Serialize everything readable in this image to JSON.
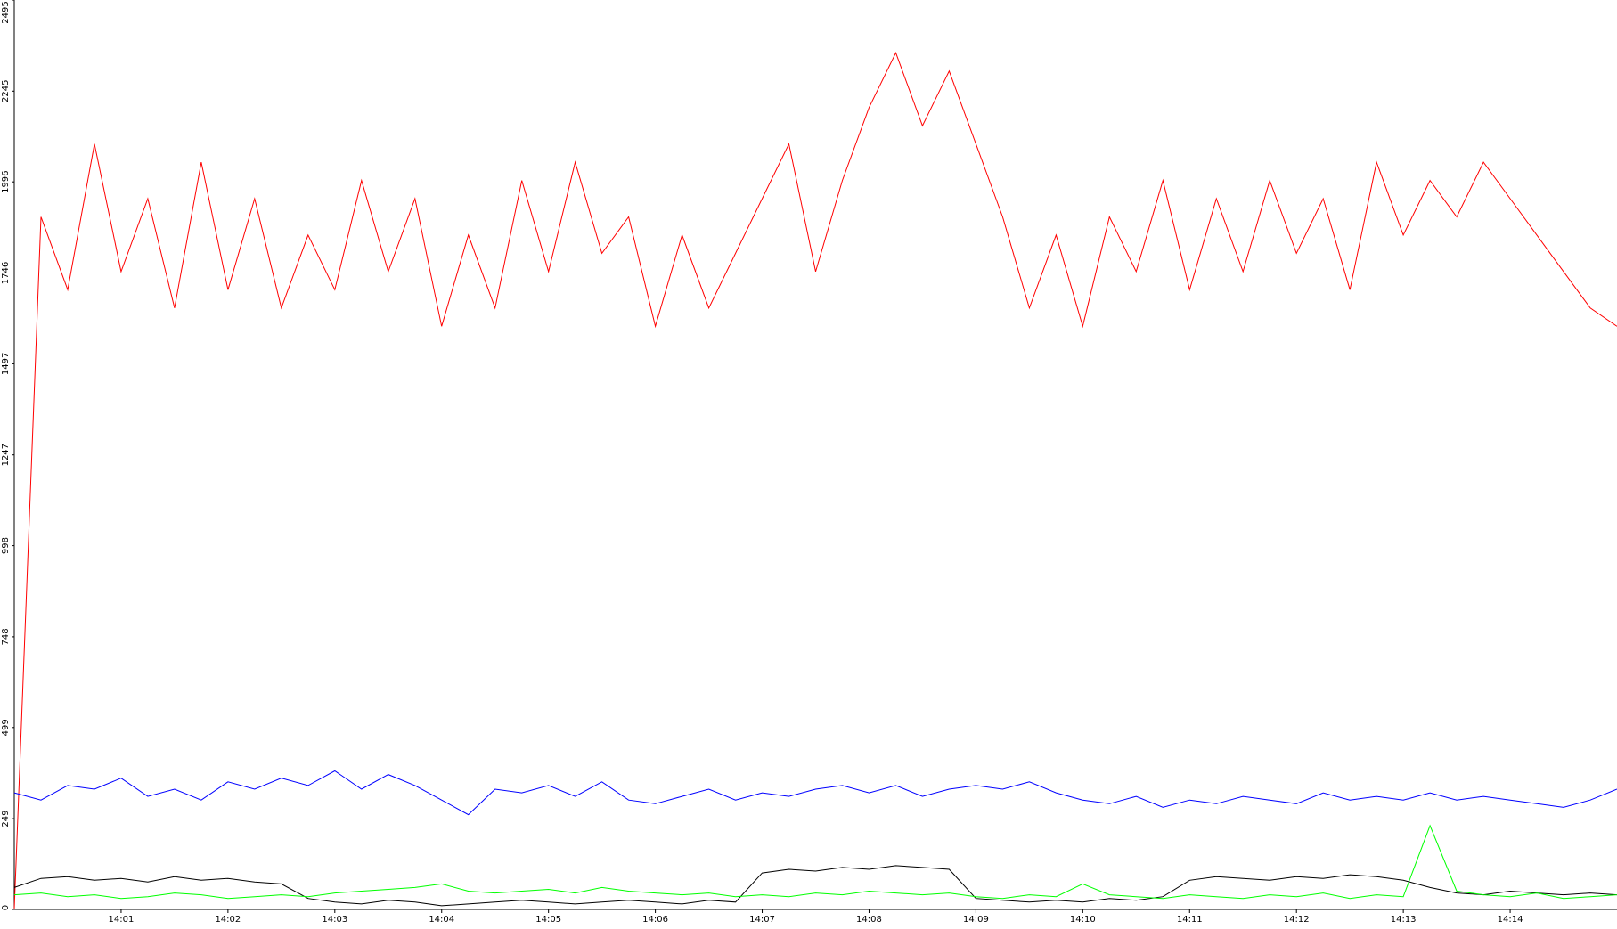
{
  "chart_data": {
    "type": "line",
    "x": [
      0,
      0.25,
      0.5,
      0.75,
      1,
      1.25,
      1.5,
      1.75,
      2,
      2.25,
      2.5,
      2.75,
      3,
      3.25,
      3.5,
      3.75,
      4,
      4.25,
      4.5,
      4.75,
      5,
      5.25,
      5.5,
      5.75,
      6,
      6.25,
      6.5,
      6.75,
      7,
      7.25,
      7.5,
      7.75,
      8,
      8.25,
      8.5,
      8.75,
      9,
      9.25,
      9.5,
      9.75,
      10,
      10.25,
      10.5,
      10.75,
      11,
      11.25,
      11.5,
      11.75,
      12,
      12.25,
      12.5,
      12.75,
      13,
      13.25,
      13.5,
      13.75,
      14,
      14.25,
      14.5,
      14.75,
      15
    ],
    "xlim": [
      0,
      15
    ],
    "xticks": [
      {
        "value": 1,
        "label": "14:01"
      },
      {
        "value": 2,
        "label": "14:02"
      },
      {
        "value": 3,
        "label": "14:03"
      },
      {
        "value": 4,
        "label": "14:04"
      },
      {
        "value": 5,
        "label": "14:05"
      },
      {
        "value": 6,
        "label": "14:06"
      },
      {
        "value": 7,
        "label": "14:07"
      },
      {
        "value": 8,
        "label": "14:08"
      },
      {
        "value": 9,
        "label": "14:09"
      },
      {
        "value": 10,
        "label": "14:10"
      },
      {
        "value": 11,
        "label": "14:11"
      },
      {
        "value": 12,
        "label": "14:12"
      },
      {
        "value": 13,
        "label": "14:13"
      },
      {
        "value": 14,
        "label": "14:14"
      }
    ],
    "ylim": [
      0,
      2495
    ],
    "yticks": [
      0,
      249,
      499,
      748,
      998,
      1247,
      1497,
      1746,
      1996,
      2245,
      2495
    ],
    "series": [
      {
        "color": "#ff0000",
        "values": [
          0,
          1900,
          1700,
          2100,
          1750,
          1950,
          1650,
          2050,
          1700,
          1950,
          1650,
          1850,
          1700,
          2000,
          1750,
          1950,
          1600,
          1850,
          1650,
          2000,
          1750,
          2050,
          1800,
          1900,
          1600,
          1850,
          1650,
          1800,
          1950,
          2100,
          1750,
          2000,
          2200,
          2350,
          2150,
          2300,
          2100,
          1900,
          1650,
          1850,
          1600,
          1900,
          1750,
          2000,
          1700,
          1950,
          1750,
          2000,
          1800,
          1950,
          1700,
          2050,
          1850,
          2000,
          1900,
          2050,
          1950,
          1850,
          1750,
          1650,
          1600
        ]
      },
      {
        "color": "#0000ff",
        "values": [
          320,
          300,
          340,
          330,
          360,
          310,
          330,
          300,
          350,
          330,
          360,
          340,
          380,
          330,
          370,
          340,
          300,
          260,
          330,
          320,
          340,
          310,
          350,
          300,
          290,
          310,
          330,
          300,
          320,
          310,
          330,
          340,
          320,
          340,
          310,
          330,
          340,
          330,
          350,
          320,
          300,
          290,
          310,
          280,
          300,
          290,
          310,
          300,
          290,
          320,
          300,
          310,
          300,
          320,
          300,
          310,
          300,
          290,
          280,
          300,
          330
        ]
      },
      {
        "color": "#000000",
        "values": [
          60,
          85,
          90,
          80,
          85,
          75,
          90,
          80,
          85,
          75,
          70,
          30,
          20,
          15,
          25,
          20,
          10,
          15,
          20,
          25,
          20,
          15,
          20,
          25,
          20,
          15,
          25,
          20,
          100,
          110,
          105,
          115,
          110,
          120,
          115,
          110,
          30,
          25,
          20,
          25,
          20,
          30,
          25,
          35,
          80,
          90,
          85,
          80,
          90,
          85,
          95,
          90,
          80,
          60,
          45,
          40,
          50,
          45,
          40,
          45,
          40
        ]
      },
      {
        "color": "#00ff00",
        "values": [
          40,
          45,
          35,
          40,
          30,
          35,
          45,
          40,
          30,
          35,
          40,
          35,
          45,
          50,
          55,
          60,
          70,
          50,
          45,
          50,
          55,
          45,
          60,
          50,
          45,
          40,
          45,
          35,
          40,
          35,
          45,
          40,
          50,
          45,
          40,
          45,
          35,
          30,
          40,
          35,
          70,
          40,
          35,
          30,
          40,
          35,
          30,
          40,
          35,
          45,
          30,
          40,
          35,
          230,
          50,
          40,
          35,
          45,
          30,
          35,
          40
        ]
      }
    ]
  }
}
